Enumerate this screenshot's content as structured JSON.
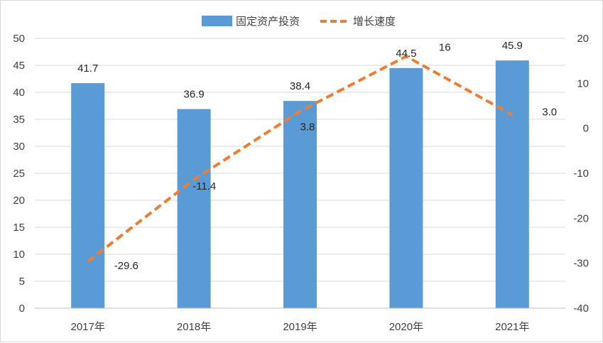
{
  "chart_data": {
    "type": "bar",
    "categories": [
      "2017年",
      "2018年",
      "2019年",
      "2020年",
      "2021年"
    ],
    "series": [
      {
        "name": "固定资产投资",
        "type": "bar",
        "axis": "left",
        "values": [
          41.7,
          36.9,
          38.4,
          44.5,
          45.9
        ],
        "labels": [
          "41.7",
          "36.9",
          "38.4",
          "44.5",
          "45.9"
        ],
        "color": "#5b9bd5"
      },
      {
        "name": "增长速度",
        "type": "line",
        "style": "dashed",
        "axis": "right",
        "values": [
          -29.6,
          -11.4,
          3.8,
          16,
          3.0
        ],
        "labels": [
          "-29.6",
          "-11.4",
          "3.8",
          "16",
          "3.0"
        ],
        "color": "#ed7d31"
      }
    ],
    "left_axis": {
      "min": 0,
      "max": 50,
      "step": 5,
      "ticks": [
        "0",
        "5",
        "10",
        "15",
        "20",
        "25",
        "30",
        "35",
        "40",
        "45",
        "50"
      ]
    },
    "right_axis": {
      "min": -40,
      "max": 20,
      "step": 10,
      "ticks": [
        "-40",
        "-30",
        "-20",
        "-10",
        "0",
        "10",
        "20"
      ]
    },
    "grid": true,
    "legend_position": "top-center"
  }
}
